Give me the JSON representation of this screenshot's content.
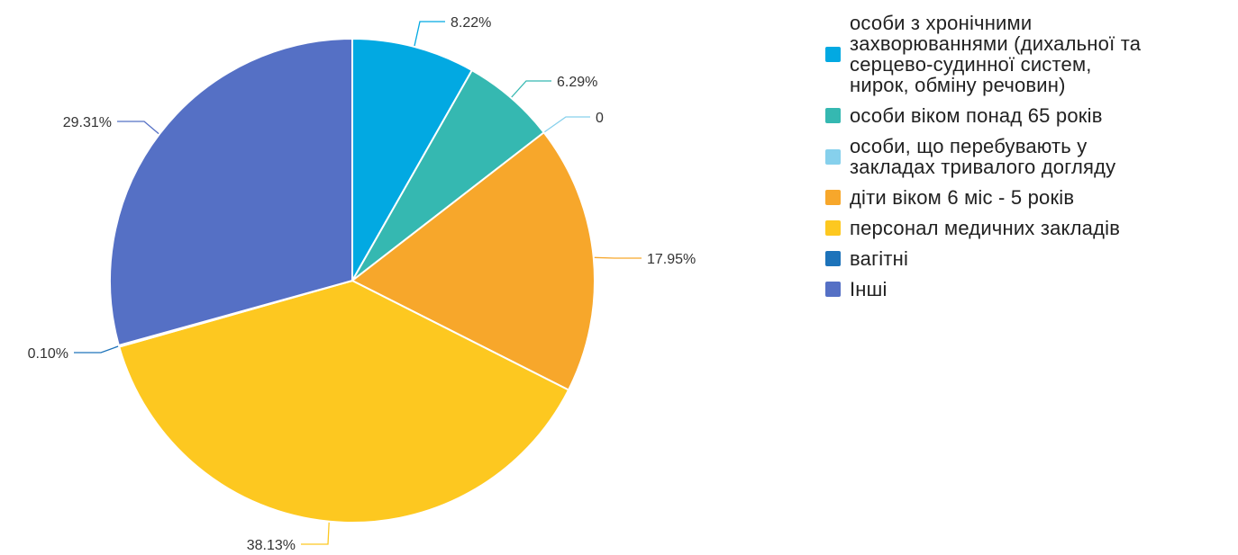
{
  "chart_data": {
    "type": "pie",
    "slices": [
      {
        "label": "особи з хронічними\nзахворюваннями (дихальної та\n серцево-судинної систем,\nнирок, обміну речовин)",
        "value": 8.22,
        "value_label": "8.22%",
        "color": "#02A9E2"
      },
      {
        "label": "особи віком понад 65 років",
        "value": 6.29,
        "value_label": "6.29%",
        "color": "#35B8B1"
      },
      {
        "label": "особи, що перебувають у\nзакладах тривалого догляду",
        "value": 0,
        "value_label": "0",
        "color": "#86D0EC"
      },
      {
        "label": "діти віком 6 міс - 5 років",
        "value": 17.95,
        "value_label": "17.95%",
        "color": "#F7A72B"
      },
      {
        "label": "персонал медичних закладів",
        "value": 38.13,
        "value_label": "38.13%",
        "color": "#FDC820"
      },
      {
        "label": "вагітні",
        "value": 0.1,
        "value_label": "0.10%",
        "color": "#1D73BA"
      },
      {
        "label": "Інші",
        "value": 29.31,
        "value_label": "29.31%",
        "color": "#5570C5"
      }
    ],
    "legend_position": "right"
  }
}
